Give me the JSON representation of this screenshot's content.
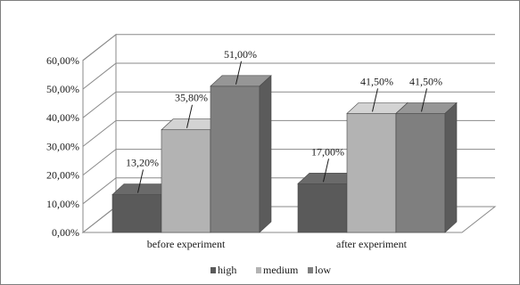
{
  "chart_data": {
    "type": "bar",
    "title": "",
    "xlabel": "",
    "ylabel": "",
    "categories": [
      "before experiment",
      "after experiment"
    ],
    "series": [
      {
        "name": "high",
        "values": [
          13.2,
          17.0
        ],
        "labels": [
          "13,20%",
          "17,00%"
        ],
        "color": "#5a5a5a"
      },
      {
        "name": "medium",
        "values": [
          35.8,
          41.5
        ],
        "labels": [
          "35,80%",
          "41,50%"
        ],
        "color": "#b3b3b3"
      },
      {
        "name": "low",
        "values": [
          51.0,
          41.5
        ],
        "labels": [
          "51,00%",
          "41,50%"
        ],
        "color": "#7f7f7f"
      }
    ],
    "ylim": [
      0,
      60
    ],
    "yticks": [
      0,
      10,
      20,
      30,
      40,
      50,
      60
    ],
    "ytick_labels": [
      "0,00%",
      "10,00%",
      "20,00%",
      "30,00%",
      "40,00%",
      "50,00%",
      "60,00%"
    ],
    "grid": true,
    "legend": "bottom",
    "style": "3d-clustered-column"
  }
}
